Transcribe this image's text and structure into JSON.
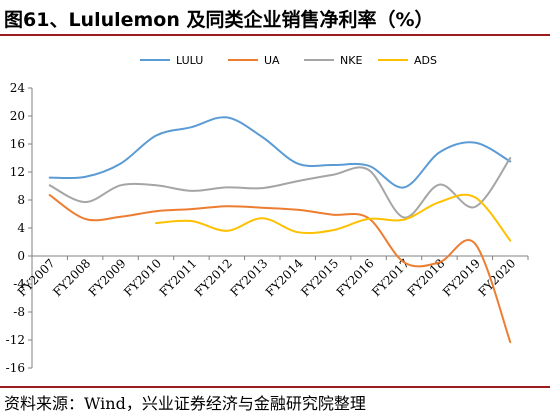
{
  "title": "图61、Lululemon 及同类企业销售净利率（%）",
  "source": "资料来源：Wind，兴业证券经济与金融研究院整理",
  "chart_data": {
    "type": "line",
    "categories": [
      "FY2007",
      "FY2008",
      "FY2009",
      "FY2010",
      "FY2011",
      "FY2012",
      "FY2013",
      "FY2014",
      "FY2015",
      "FY2016",
      "FY2017",
      "FY2018",
      "FY2019",
      "FY2020"
    ],
    "ylim": [
      -16,
      24
    ],
    "yticks": [
      -16,
      -12,
      -8,
      -4,
      0,
      4,
      8,
      12,
      16,
      20,
      24
    ],
    "grid": false,
    "legend_position": "top",
    "series": [
      {
        "name": "LULU",
        "color": "#5b9bd5",
        "values": [
          11.2,
          11.3,
          13.2,
          17.2,
          18.4,
          19.8,
          17.0,
          13.2,
          13.0,
          12.9,
          9.8,
          14.8,
          16.2,
          13.5
        ]
      },
      {
        "name": "UA",
        "color": "#ed7d31",
        "values": [
          8.7,
          5.3,
          5.6,
          6.4,
          6.7,
          7.1,
          6.9,
          6.6,
          5.9,
          5.4,
          -0.9,
          -0.9,
          1.8,
          -12.3
        ]
      },
      {
        "name": "NKE",
        "color": "#a5a5a5",
        "values": [
          10.1,
          7.7,
          10.1,
          10.1,
          9.3,
          9.8,
          9.7,
          10.7,
          11.6,
          12.3,
          5.5,
          10.2,
          7.0,
          14.0
        ]
      },
      {
        "name": "ADS",
        "color": "#ffc000",
        "values": [
          null,
          null,
          null,
          4.7,
          5.0,
          3.6,
          5.4,
          3.4,
          3.7,
          5.3,
          5.2,
          7.7,
          8.4,
          2.2
        ]
      }
    ]
  }
}
